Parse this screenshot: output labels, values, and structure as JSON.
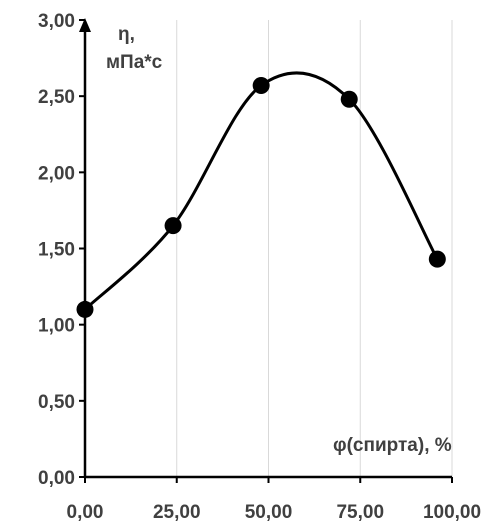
{
  "chart_data": {
    "type": "line",
    "smooth": true,
    "markers": "filled-circle",
    "x": [
      0,
      24,
      48,
      72,
      96
    ],
    "y": [
      1.1,
      1.65,
      2.57,
      2.48,
      1.43
    ],
    "xlim": [
      0,
      100
    ],
    "ylim": [
      0,
      3
    ],
    "xticks": [
      "0,00",
      "25,00",
      "50,00",
      "75,00",
      "100,00"
    ],
    "yticks": [
      "0,00",
      "0,50",
      "1,00",
      "1,50",
      "2,00",
      "2,50",
      "3,00"
    ],
    "ylabel_line1": "η,",
    "ylabel_line2": "мПа*с",
    "xlabel": "φ(спирта), %",
    "grid": "vertical",
    "line_color": "#000000",
    "grid_color": "#d9d9d9",
    "text_color": "#404040"
  }
}
